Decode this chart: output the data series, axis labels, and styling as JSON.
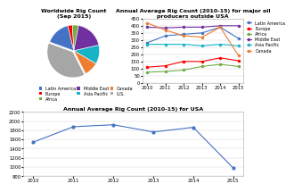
{
  "pie_title": "Worldwide Rig Count\n(Sep 2015)",
  "pie_labels": [
    "Latin America",
    "Europe",
    "Africa",
    "Middle East",
    "Asia Pacific",
    "Canada",
    "U.S."
  ],
  "pie_values": [
    330,
    60,
    80,
    390,
    250,
    190,
    800
  ],
  "pie_colors": [
    "#4472C4",
    "#FF0000",
    "#70AD47",
    "#7030A0",
    "#17B4C8",
    "#ED7D31",
    "#A6A6A6"
  ],
  "pie_explode": [
    0,
    0,
    0,
    0,
    0,
    0,
    0.06
  ],
  "pie_startangle": 160,
  "line_title": "Annual Average Rig Count (2010-15) for major oil\nproducers outside USA",
  "line_years": [
    2010,
    2011,
    2012,
    2013,
    2014,
    2015
  ],
  "line_series": {
    "Latin America": [
      280,
      330,
      340,
      350,
      390,
      310
    ],
    "Europe": [
      110,
      120,
      150,
      150,
      175,
      155
    ],
    "Africa": [
      75,
      80,
      90,
      115,
      130,
      115
    ],
    "Middle East": [
      390,
      385,
      390,
      390,
      400,
      400
    ],
    "Asia Pacific": [
      270,
      270,
      270,
      260,
      270,
      260
    ],
    "Canada": [
      420,
      370,
      330,
      320,
      390,
      190
    ]
  },
  "line_colors": {
    "Latin America": "#4472C4",
    "Europe": "#FF0000",
    "Africa": "#70AD47",
    "Middle East": "#7030A0",
    "Asia Pacific": "#17B4C8",
    "Canada": "#ED7D31"
  },
  "line_ylim": [
    0,
    450
  ],
  "line_yticks": [
    0,
    50,
    100,
    150,
    200,
    250,
    300,
    350,
    400,
    450
  ],
  "usa_title": "Annual Average Rig Count (2010-15) for USA",
  "usa_years": [
    2010,
    2011,
    2012,
    2013,
    2014,
    2015
  ],
  "usa_values": [
    1541,
    1875,
    1919,
    1761,
    1862,
    978
  ],
  "usa_color": "#4472C4",
  "usa_ylim": [
    800,
    2200
  ],
  "usa_yticks": [
    800,
    1000,
    1200,
    1400,
    1600,
    1800,
    2000,
    2200
  ],
  "bg_color": "#FFFFFF",
  "grid_color": "#D3D3D3",
  "font_size_title": 4.5,
  "font_size_tick": 3.8,
  "font_size_legend": 3.5
}
